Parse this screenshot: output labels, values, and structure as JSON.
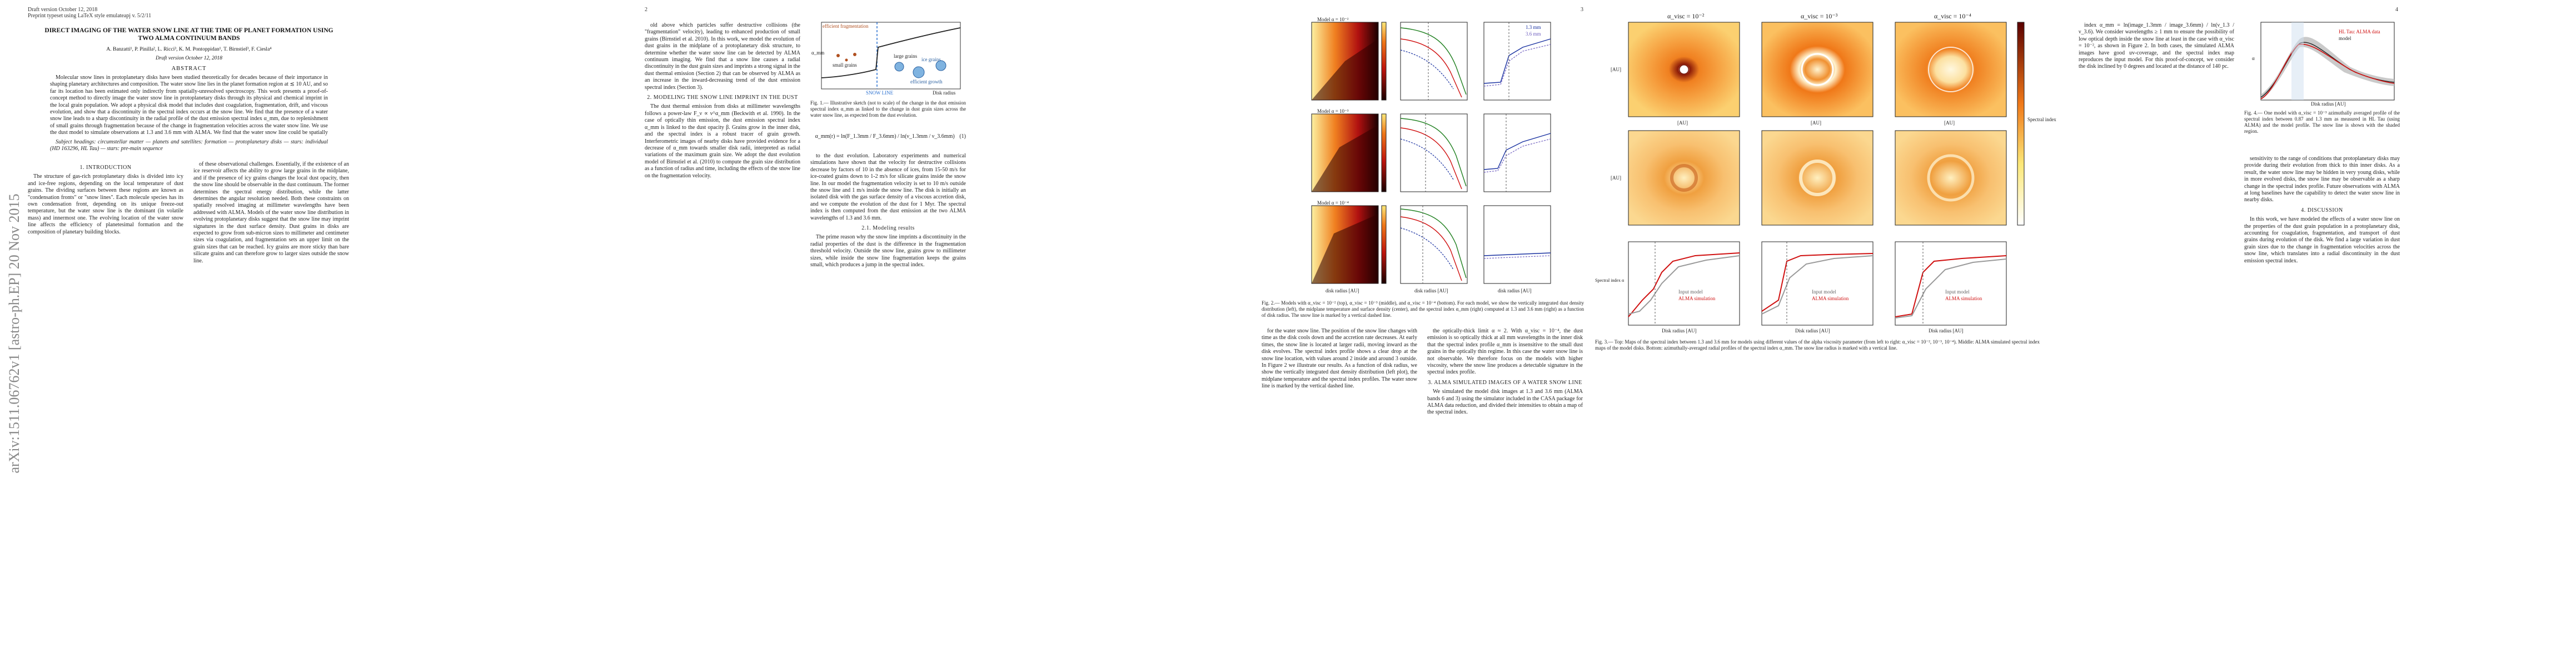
{
  "arxiv_stamp": "arXiv:1511.06762v1  [astro-ph.EP]  20 Nov 2015",
  "page1": {
    "header_line1": "Draft version October 12, 2018",
    "header_line2": "Preprint typeset using LaTeX style emulateapj v. 5/2/11",
    "title": "DIRECT IMAGING OF THE WATER SNOW LINE AT THE TIME OF PLANET FORMATION USING TWO ALMA CONTINUUM BANDS",
    "authors": "A. Banzatti¹, P. Pinilla², L. Ricci³, K. M. Pontoppidan¹, T. Birnstiel³, F. Ciesla⁴",
    "date": "Draft version October 12, 2018",
    "abstract_heading": "ABSTRACT",
    "abstract_text": "Molecular snow lines in protoplanetary disks have been studied theoretically for decades because of their importance in shaping planetary architectures and composition. The water snow line lies in the planet formation region at ≲ 10 AU, and so far its location has been estimated only indirectly from spatially-unresolved spectroscopy. This work presents a proof-of-concept method to directly image the water snow line in protoplanetary disks through its physical and chemical imprint in the local grain population. We adopt a physical disk model that includes dust coagulation, fragmentation, drift, and viscous evolution, and show that a discontinuity in the spectral index occurs at the snow line. We find that the presence of a water snow line leads to a sharp discontinuity in the radial profile of the dust emission spectral index α_mm, due to replenishment of small grains through fragmentation because of the change in fragmentation velocities across the water snow line. We use the dust model to simulate observations at 1.3 and 3.6 mm with ALMA. We find that the water snow line could be spatially resolved in the nearest protoplanetary disks.",
    "subject_headings": "Subject headings: circumstellar matter — planets and satellites: formation — protoplanetary disks — stars: individual (HD 163296, HL Tau) — stars: pre-main sequence",
    "sec1": "1. INTRODUCTION",
    "intro_text": "The structure of gas-rich protoplanetary disks is divided into icy and ice-free regions, depending on the local temperature of dust grains. The dividing surfaces between these regions are known as \"condensation fronts\" or \"snow lines\". Each molecule species has its own condensation front, depending on its unique freeze-out temperature, but the water snow line is the dominant (in volatile mass) and innermost one. The evolving location of the water snow line affects the efficiency of planetesimal formation and the composition of planetary building blocks.",
    "col2_text": "of these observational challenges. Essentially, if the existence of an ice reservoir affects the ability to grow large grains in the midplane, and if the presence of icy grains changes the local dust opacity, then the snow line should be observable in the dust continuum. The former determines the spectral energy distribution, while the latter determines the angular resolution needed. Both these constraints on spatially resolved imaging at millimeter wavelengths have been addressed with ALMA. Models of the water snow line distribution in evolving protoplanetary disks suggest that the snow line may imprint signatures in the dust surface density. Dust grains in disks are expected to grow from sub-micron sizes to millimeter and centimeter sizes via coagulation, and fragmentation sets an upper limit on the grain sizes that can be reached. Icy grains are more sticky than bare silicate grains and can therefore grow to larger sizes outside the snow line."
  },
  "page2": {
    "page_number": "2",
    "col1_text": "old above which particles suffer destructive collisions (the \"fragmentation\" velocity), leading to enhanced production of small grains (Birnstiel et al. 2010). In this work, we model the evolution of dust grains in the midplane of a protoplanetary disk structure, to determine whether the water snow line can be detected by ALMA continuum imaging. We find that a snow line causes a radial discontinuity in the dust grain sizes and imprints a strong signal in the dust thermal emission (Section 2) that can be observed by ALMA as an increase in the inward-decreasing trend of the dust emission spectral index (Section 3).",
    "sec2": "2. MODELING THE SNOW LINE IMPRINT IN THE DUST",
    "col1b_text": "The dust thermal emission from disks at millimeter wavelengths follows a power-law F_ν ∝ ν^α_mm (Beckwith et al. 1990). In the case of optically thin emission, the dust emission spectral index α_mm is linked to the dust opacity β. Grains grow in the inner disk, and the spectral index is a robust tracer of grain growth. Interferometric images of nearby disks have provided evidence for a decrease of α_mm towards smaller disk radii, interpreted as radial variations of the maximum grain size. We adopt the dust evolution model of Birnstiel et al. (2010) to compute the grain size distribution as a function of radius and time, including the effects of the snow line on the fragmentation velocity.",
    "col2_text": "to the dust evolution. Laboratory experiments and numerical simulations have shown that the velocity for destructive collisions decrease by factors of 10 in the absence of ices, from 15-50 m/s for ice-coated grains down to 1-2 m/s for silicate grains inside the snow line. In our model the fragmentation velocity is set to 10 m/s outside the snow line and 1 m/s inside the snow line. The disk is initially an isolated disk with the gas surface density of a viscous accretion disk, and we compute the evolution of the dust for 1 Myr. The spectral index is then computed from the dust emission at the two ALMA wavelengths of 1.3 and 3.6 mm.",
    "sec2a": "2.1. Modeling results",
    "col2b_text": "The prime reason why the snow line imprints a discontinuity in the radial properties of the dust is the difference in the fragmentation threshold velocity. Outside the snow line, grains grow to millimeter sizes, while inside the snow line fragmentation keeps the grains small, which produces a jump in the spectral index.",
    "equation1": "α_mm(r) = ln(F_1.3mm / F_3.6mm) / ln(ν_1.3mm / ν_3.6mm)",
    "equation_label": "(1)"
  },
  "fig1": {
    "caption": "Fig. 1.— Illustrative sketch (not to scale) of the change in the dust emission spectral index α_mm as linked to the change in dust grain sizes across the water snow line, as expected from the dust evolution.",
    "left_label": "efficient fragmentation",
    "right_label": "efficient growth",
    "small_label": "small grains",
    "large_label": "large grains",
    "snow_line_label": "SNOW LINE",
    "xaxis": "Disk radius",
    "yaxis": "α_mm",
    "ice_label": "ice grains"
  },
  "page3": {
    "page_number": "3",
    "col1_text": "for the water snow line. The position of the snow line changes with time as the disk cools down and the accretion rate decreases. At early times, the snow line is located at larger radii, moving inward as the disk evolves. The spectral index profile shows a clear drop at the snow line location, with values around 2 inside and around 3 outside. In Figure 2 we illustrate our results. As a function of disk radius, we show the vertically integrated dust density distribution (left plot), the midplane temperature and the spectral index profiles. The water snow line is marked by the vertical dashed line.",
    "col2_text": "the optically-thick limit α ≈ 2. With α_visc = 10⁻⁴, the dust emission is so optically thick at all mm wavelengths in the inner disk that the spectral index profile α_mm is insensitive to the small dust grains in the optically thin regime. In this case the water snow line is not observable. We therefore focus on the models with higher viscosity, where the snow line produces a detectable signature in the spectral index profile.",
    "sec3": "3. ALMA SIMULATED IMAGES OF A WATER SNOW LINE",
    "col2b_text": "We simulated the model disk images at 1.3 and 3.6 mm (ALMA bands 6 and 3) using the simulator included in the CASA package for ALMA data reduction, and divided their intensities to obtain a map of the spectral index."
  },
  "fig2": {
    "caption": "Fig. 2.— Models with α_visc = 10⁻² (top), α_visc = 10⁻³ (middle), and α_visc = 10⁻⁴ (bottom). For each model, we show the vertically integrated dust density distribution (left), the midplane temperature and surface density (center), and the spectral index α_mm (right) computed at 1.3 and 3.6 mm (right) as a function of disk radius. The snow line is marked by a vertical dashed line.",
    "row_labels": [
      "Model α = 10⁻²",
      "Model α = 10⁻³",
      "Model α = 10⁻⁴"
    ],
    "legend_13": "1.3 mm",
    "legend_36": "3.6 mm",
    "xaxis": "disk radius [AU]"
  },
  "fig3": {
    "caption": "Fig. 3.— Top: Maps of the spectral index between 1.3 and 3.6 mm for models using different values of the alpha viscosity parameter (from left to right: α_visc = 10⁻², 10⁻³, 10⁻⁴). Middle: ALMA simulated spectral index maps of the model disks. Bottom: azimuthally-averaged radial profiles of the spectral index α_mm. The snow line radius is marked with a vertical line.",
    "col_titles": [
      "α_visc = 10⁻²",
      "α_visc = 10⁻³",
      "α_visc = 10⁻⁴"
    ],
    "axis_label": "[AU]",
    "colorbar_label": "Spectral index",
    "legend_input": "Input model",
    "legend_alma": "ALMA simulation",
    "yaxis_bottom": "Spectral index α",
    "xaxis_bottom": "Disk radius [AU]"
  },
  "page4": {
    "page_number": "4",
    "col1_text": "index α_mm = ln(image_1.3mm / image_3.6mm) / ln(ν_1.3 / ν_3.6). We consider wavelengths ≥ 1 mm to ensure the possibility of low optical depth inside the snow line at least in the case with α_visc = 10⁻², as shown in Figure 2. In both cases, the simulated ALMA images have good uv-coverage, and the spectral index map reproduces the input model. For this proof-of-concept, we consider the disk inclined by 0 degrees and located at the distance of 140 pc.",
    "col2_text": "sensitivity to the range of conditions that protoplanetary disks may provide during their evolution from thick to thin inner disks. As a result, the water snow line may be hidden in very young disks, while in more evolved disks, the snow line may be observable as a sharp change in the spectral index profile. Future observations with ALMA at long baselines have the capability to detect the water snow line in nearby disks.",
    "sec4": "4. DISCUSSION",
    "col2b_text": "In this work, we have modeled the effects of a water snow line on the properties of the dust grain population in a protoplanetary disk, accounting for coagulation, fragmentation, and transport of dust grains during evolution of the disk. We find a large variation in dust grain sizes due to the change in fragmentation velocities across the snow line, which translates into a radial discontinuity in the dust emission spectral index."
  },
  "fig4": {
    "caption": "Fig. 4.— One model with α_visc = 10⁻³ azimuthally averaged profile of the spectral index between 0.87 and 1.3 mm as measured in HL Tau (using ALMA) and the model profile. The snow line is shown with the shaded region.",
    "legend_obs": "HL Tau: ALMA data",
    "legend_model": "model",
    "xaxis": "Disk radius [AU]",
    "yaxis": "α"
  },
  "colors": {
    "heat_dark": "#1a0000",
    "heat_red": "#c0140c",
    "heat_orange": "#f07818",
    "heat_yellow": "#fce878",
    "line_red": "#d01010",
    "line_blue": "#1830a0",
    "line_green": "#208020",
    "arxiv_gray": "#888888"
  }
}
